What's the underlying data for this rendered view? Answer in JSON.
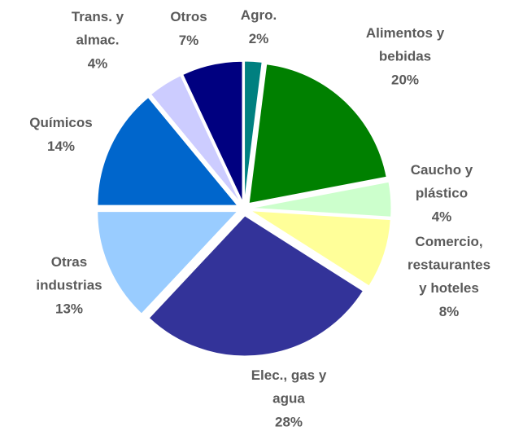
{
  "chart_data": {
    "type": "pie",
    "categories": [
      "Agro.",
      "Alimentos y\nbebidas",
      "Caucho y\nplástico",
      "Comercio,\nrestaurantes\ny hoteles",
      "Elec., gas y\nagua",
      "Otras\nindustrias",
      "Químicos",
      "Trans. y\nalmac.",
      "Otros"
    ],
    "values": [
      2,
      20,
      4,
      8,
      28,
      13,
      14,
      4,
      7
    ],
    "value_labels": [
      "2%",
      "20%",
      "4%",
      "8%",
      "28%",
      "13%",
      "14%",
      "4%",
      "7%"
    ],
    "colors": [
      "#008080",
      "#008000",
      "#ccffcc",
      "#ffff99",
      "#333399",
      "#99ccff",
      "#0066cc",
      "#ccccff",
      "#000080"
    ]
  }
}
